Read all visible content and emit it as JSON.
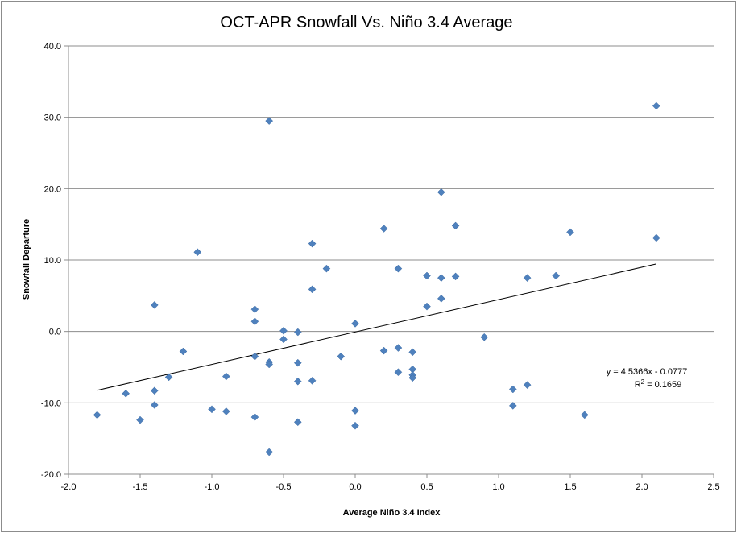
{
  "chart_data": {
    "type": "scatter",
    "title": "OCT-APR Snowfall Vs. Niño 3.4 Average",
    "xlabel": "Average Niño 3.4 Index",
    "ylabel": "Snowfall Departure",
    "xlim": [
      -2.0,
      2.5
    ],
    "ylim": [
      -20.0,
      40.0
    ],
    "x_ticks": [
      "-2.0",
      "-1.5",
      "-1.0",
      "-0.5",
      "0.0",
      "0.5",
      "1.0",
      "1.5",
      "2.0",
      "2.5"
    ],
    "y_ticks": [
      "-20.0",
      "-10.0",
      "0.0",
      "10.0",
      "20.0",
      "30.0",
      "40.0"
    ],
    "grid": "horizontal",
    "marker_color": "#4f81bd",
    "trendline": {
      "slope": 4.5366,
      "intercept": -0.0777,
      "x_range": [
        -1.8,
        2.1
      ],
      "equation": "y = 4.5366x - 0.0777",
      "r2_prefix": "R",
      "r2_sup": "2",
      "r2_value": " = 0.1659"
    },
    "points": [
      {
        "x": -1.8,
        "y": -11.7
      },
      {
        "x": -1.6,
        "y": -8.7
      },
      {
        "x": -1.5,
        "y": -12.4
      },
      {
        "x": -1.4,
        "y": 3.7
      },
      {
        "x": -1.4,
        "y": -8.3
      },
      {
        "x": -1.4,
        "y": -10.3
      },
      {
        "x": -1.3,
        "y": -6.4
      },
      {
        "x": -1.2,
        "y": -2.8
      },
      {
        "x": -1.1,
        "y": 11.1
      },
      {
        "x": -1.0,
        "y": -10.9
      },
      {
        "x": -0.9,
        "y": -6.3
      },
      {
        "x": -0.9,
        "y": -11.2
      },
      {
        "x": -0.7,
        "y": 3.1
      },
      {
        "x": -0.7,
        "y": 1.4
      },
      {
        "x": -0.7,
        "y": -3.5
      },
      {
        "x": -0.7,
        "y": -12.0
      },
      {
        "x": -0.6,
        "y": 29.5
      },
      {
        "x": -0.6,
        "y": -4.3
      },
      {
        "x": -0.6,
        "y": -4.6
      },
      {
        "x": -0.6,
        "y": -16.9
      },
      {
        "x": -0.5,
        "y": 0.1
      },
      {
        "x": -0.5,
        "y": -1.1
      },
      {
        "x": -0.4,
        "y": -0.1
      },
      {
        "x": -0.4,
        "y": -4.4
      },
      {
        "x": -0.4,
        "y": -7.0
      },
      {
        "x": -0.4,
        "y": -12.7
      },
      {
        "x": -0.3,
        "y": 12.3
      },
      {
        "x": -0.3,
        "y": 5.9
      },
      {
        "x": -0.3,
        "y": -6.9
      },
      {
        "x": -0.2,
        "y": 8.8
      },
      {
        "x": -0.1,
        "y": -3.5
      },
      {
        "x": 0.0,
        "y": 1.1
      },
      {
        "x": 0.0,
        "y": -11.1
      },
      {
        "x": 0.0,
        "y": -13.2
      },
      {
        "x": 0.2,
        "y": 14.4
      },
      {
        "x": 0.2,
        "y": -2.7
      },
      {
        "x": 0.3,
        "y": 8.8
      },
      {
        "x": 0.3,
        "y": -2.3
      },
      {
        "x": 0.3,
        "y": -5.7
      },
      {
        "x": 0.4,
        "y": -2.9
      },
      {
        "x": 0.4,
        "y": -5.3
      },
      {
        "x": 0.4,
        "y": -6.1
      },
      {
        "x": 0.4,
        "y": -6.5
      },
      {
        "x": 0.5,
        "y": 7.8
      },
      {
        "x": 0.5,
        "y": 3.5
      },
      {
        "x": 0.6,
        "y": 19.5
      },
      {
        "x": 0.6,
        "y": 7.5
      },
      {
        "x": 0.6,
        "y": 4.6
      },
      {
        "x": 0.7,
        "y": 14.8
      },
      {
        "x": 0.7,
        "y": 7.7
      },
      {
        "x": 0.9,
        "y": -0.8
      },
      {
        "x": 1.1,
        "y": -8.1
      },
      {
        "x": 1.1,
        "y": -10.4
      },
      {
        "x": 1.2,
        "y": 7.5
      },
      {
        "x": 1.2,
        "y": -7.5
      },
      {
        "x": 1.4,
        "y": 7.8
      },
      {
        "x": 1.5,
        "y": 13.9
      },
      {
        "x": 1.6,
        "y": -11.7
      },
      {
        "x": 2.1,
        "y": 31.6
      },
      {
        "x": 2.1,
        "y": 13.1
      }
    ]
  }
}
